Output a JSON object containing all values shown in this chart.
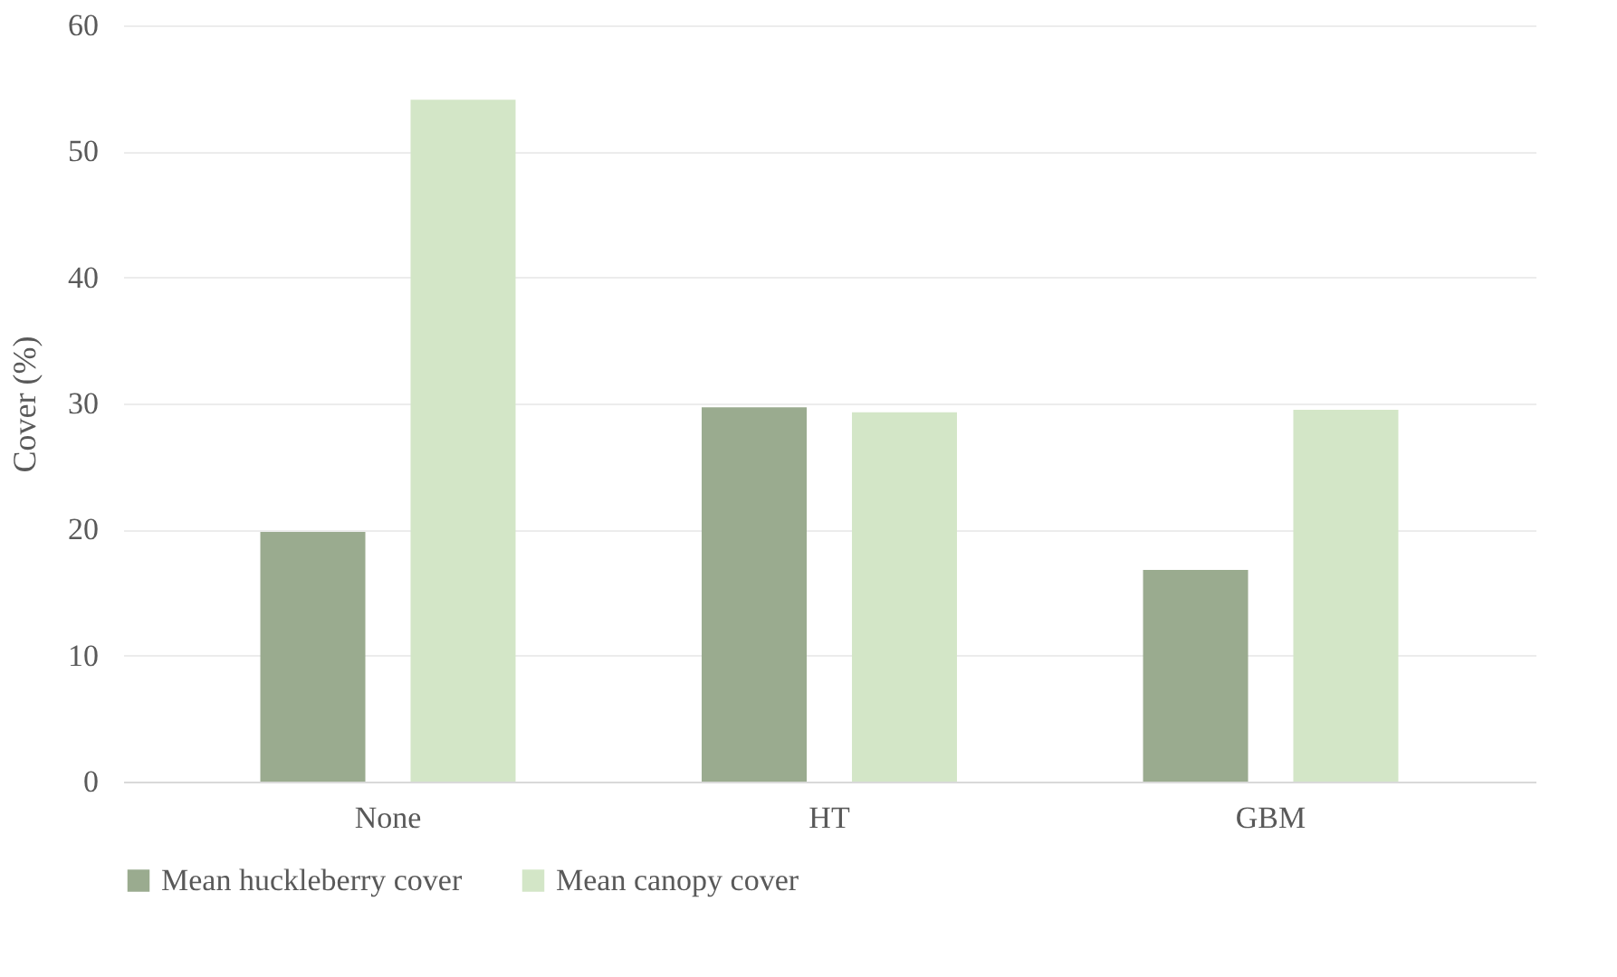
{
  "chart_data": {
    "type": "bar",
    "ylabel": "Cover (%)",
    "categories": [
      "None",
      "HT",
      "GBM"
    ],
    "series": [
      {
        "name": "Mean huckleberry cover",
        "color": "#9aab8f",
        "values": [
          19.8,
          29.7,
          16.8
        ]
      },
      {
        "name": "Mean canopy cover",
        "color": "#d3e6c7",
        "values": [
          54.1,
          29.3,
          29.5
        ]
      }
    ],
    "ylim": [
      0,
      60
    ],
    "yticks": [
      0,
      10,
      20,
      30,
      40,
      50,
      60
    ],
    "grid": "y",
    "legend": "bottom"
  }
}
